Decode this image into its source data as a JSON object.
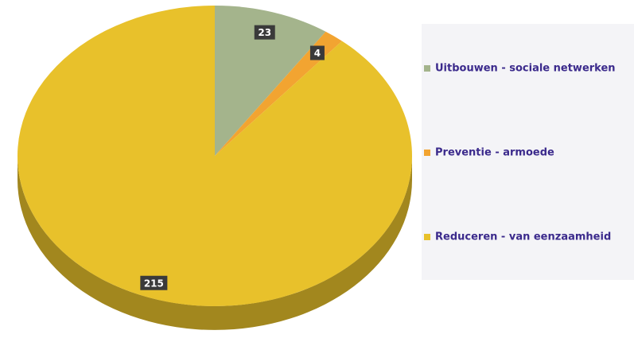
{
  "chart_data": {
    "type": "pie",
    "categories": [
      "Uitbouwen - sociale netwerken",
      "Preventie - armoede",
      "Reduceren - van eenzaamheid"
    ],
    "values": [
      23,
      4,
      215
    ],
    "colors": [
      "#a4b48c",
      "#f2a431",
      "#e8c12b"
    ]
  }
}
